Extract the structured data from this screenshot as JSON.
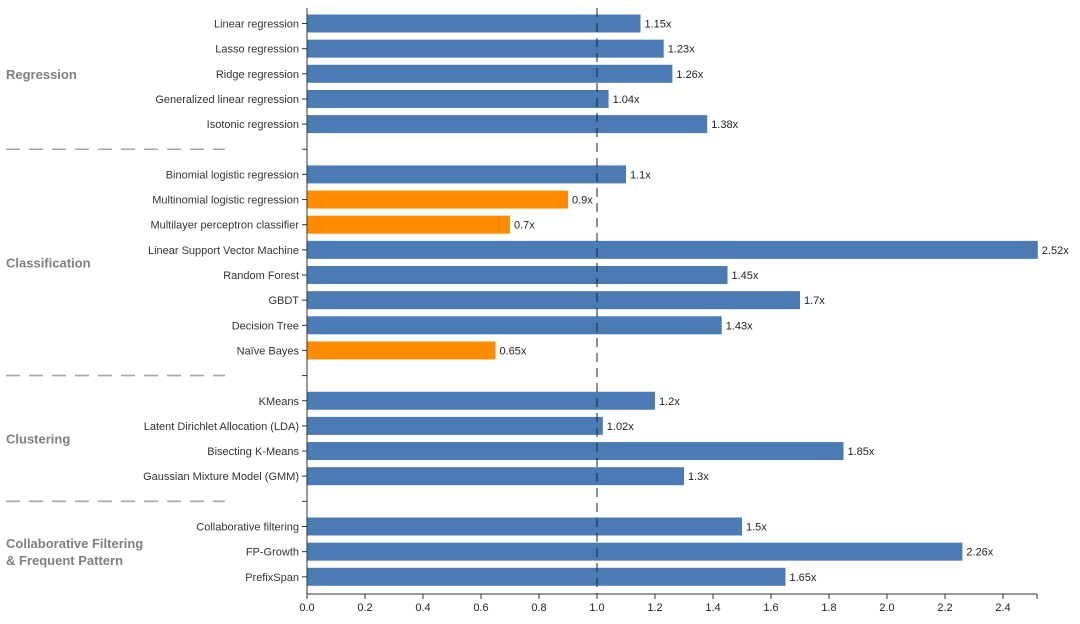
{
  "chart_data": {
    "type": "bar",
    "orientation": "horizontal",
    "title": "",
    "xlabel": "",
    "ylabel": "",
    "xlim": [
      0,
      2.52
    ],
    "xticks": [
      "0.0",
      "0.2",
      "0.4",
      "0.6",
      "0.8",
      "1.0",
      "1.2",
      "1.4",
      "1.6",
      "1.8",
      "2.0",
      "2.2",
      "2.4"
    ],
    "reference_line": 1.0,
    "colors": {
      "above": "#4a7bb5",
      "below": "#ff8c00"
    },
    "groups": [
      {
        "name": "Regression",
        "items": [
          {
            "label": "Linear regression",
            "value": 1.15,
            "text": "1.15x"
          },
          {
            "label": "Lasso regression",
            "value": 1.23,
            "text": "1.23x"
          },
          {
            "label": "Ridge regression",
            "value": 1.26,
            "text": "1.26x"
          },
          {
            "label": "Generalized linear regression",
            "value": 1.04,
            "text": "1.04x"
          },
          {
            "label": "Isotonic regression",
            "value": 1.38,
            "text": "1.38x"
          }
        ]
      },
      {
        "name": "Classification",
        "items": [
          {
            "label": "Binomial logistic regression",
            "value": 1.1,
            "text": "1.1x"
          },
          {
            "label": "Multinomial logistic regression",
            "value": 0.9,
            "text": "0.9x"
          },
          {
            "label": "Multilayer perceptron classifier",
            "value": 0.7,
            "text": "0.7x"
          },
          {
            "label": "Linear Support Vector Machine",
            "value": 2.52,
            "text": "2.52x"
          },
          {
            "label": "Random Forest",
            "value": 1.45,
            "text": "1.45x"
          },
          {
            "label": "GBDT",
            "value": 1.7,
            "text": "1.7x"
          },
          {
            "label": "Decision Tree",
            "value": 1.43,
            "text": "1.43x"
          },
          {
            "label": "Naïve Bayes",
            "value": 0.65,
            "text": "0.65x"
          }
        ]
      },
      {
        "name": "Clustering",
        "items": [
          {
            "label": "KMeans",
            "value": 1.2,
            "text": "1.2x"
          },
          {
            "label": "Latent Dirichlet Allocation (LDA)",
            "value": 1.02,
            "text": "1.02x"
          },
          {
            "label": "Bisecting K-Means",
            "value": 1.85,
            "text": "1.85x"
          },
          {
            "label": "Gaussian Mixture Model (GMM)",
            "value": 1.3,
            "text": "1.3x"
          }
        ]
      },
      {
        "name": "Collaborative Filtering & Frequent Pattern",
        "name_lines": [
          "Collaborative Filtering",
          "& Frequent Pattern"
        ],
        "items": [
          {
            "label": "Collaborative filtering",
            "value": 1.5,
            "text": "1.5x"
          },
          {
            "label": "FP-Growth",
            "value": 2.26,
            "text": "2.26x"
          },
          {
            "label": "PrefixSpan",
            "value": 1.65,
            "text": "1.65x"
          }
        ]
      }
    ]
  }
}
